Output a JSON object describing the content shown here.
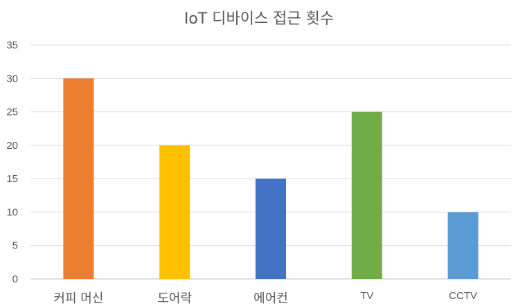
{
  "chart_data": {
    "type": "bar",
    "title": "IoT 디바이스 접근 횟수",
    "categories": [
      "커피 머신",
      "도어락",
      "에어컨",
      "TV",
      "CCTV"
    ],
    "values": [
      30,
      20,
      15,
      25,
      10
    ],
    "colors": [
      "#ED7D31",
      "#FFC000",
      "#4472C4",
      "#70AD47",
      "#5B9BD5"
    ],
    "ylim": [
      0,
      35
    ],
    "yticks": [
      0,
      5,
      10,
      15,
      20,
      25,
      30,
      35
    ],
    "grid": true,
    "legend": "none",
    "xlabel": "",
    "ylabel": ""
  }
}
